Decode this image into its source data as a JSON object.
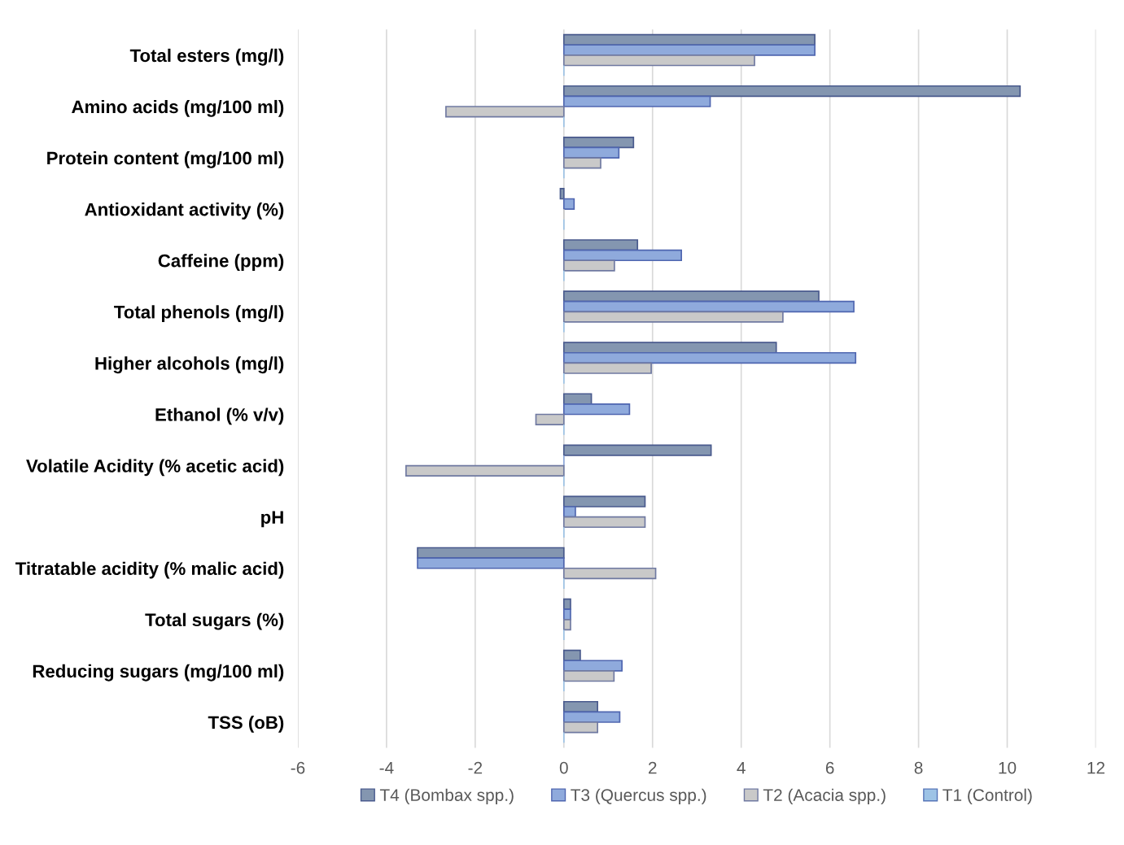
{
  "chart_data": {
    "type": "bar",
    "orientation": "horizontal",
    "categories": [
      "Total esters (mg/l)",
      "Amino acids (mg/100 ml)",
      "Protein content (mg/100 ml)",
      "Antioxidant activity (%)",
      "Caffeine (ppm)",
      "Total phenols (mg/l)",
      "Higher alcohols (mg/l)",
      "Ethanol (% v/v)",
      "Volatile Acidity (% acetic acid)",
      "pH",
      "Titratable acidity (% malic acid)",
      "Total sugars (%)",
      "Reducing sugars (mg/100 ml)",
      "TSS (oB)"
    ],
    "series": [
      {
        "name": "T4 (Bombax spp.)",
        "color": "#8496b0",
        "values": [
          5.66,
          10.29,
          1.57,
          -0.08,
          1.66,
          5.75,
          4.79,
          0.62,
          3.32,
          1.83,
          -3.3,
          0.15,
          0.37,
          0.76
        ]
      },
      {
        "name": "T3 (Quercus spp.)",
        "color": "#8faadc",
        "values": [
          5.66,
          3.3,
          1.24,
          0.23,
          2.65,
          6.54,
          6.58,
          1.48,
          0,
          0.26,
          -3.3,
          0.15,
          1.31,
          1.26
        ]
      },
      {
        "name": "T2 (Acacia spp.)",
        "color": "#c9c9c9",
        "values": [
          4.3,
          -2.66,
          0.83,
          0,
          1.14,
          4.94,
          1.97,
          -0.63,
          -3.56,
          1.83,
          2.07,
          0.15,
          1.13,
          0.76
        ]
      },
      {
        "name": "T1 (Control)",
        "color": "#9dc3e6",
        "values": [
          0,
          0,
          0,
          0,
          0,
          0,
          0,
          0,
          0,
          0,
          0,
          0,
          0,
          0
        ]
      }
    ],
    "xlim": [
      -6,
      12
    ],
    "xticks": [
      -6,
      -4,
      -2,
      0,
      2,
      4,
      6,
      8,
      10,
      12
    ],
    "grid": "x",
    "legend": "bottom"
  }
}
